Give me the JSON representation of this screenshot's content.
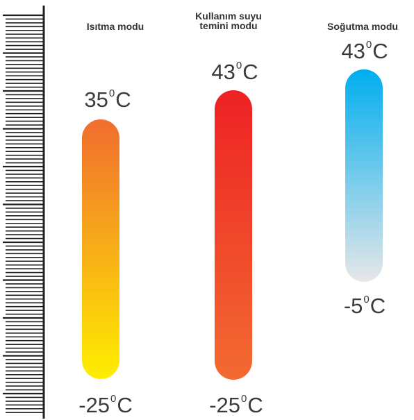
{
  "modes": [
    {
      "title_lines": [
        "Isıtma modu"
      ],
      "max": {
        "value": "35",
        "unit": "C"
      },
      "min": {
        "value": "-25",
        "unit": "C"
      },
      "gradient": {
        "top": "#f06d2f",
        "bottom": "#ffee00"
      }
    },
    {
      "title_lines": [
        "Kullanım suyu",
        "temini modu"
      ],
      "max": {
        "value": "43",
        "unit": "C"
      },
      "min": {
        "value": "-25",
        "unit": "C"
      },
      "gradient": {
        "top": "#ee2124",
        "bottom": "#f26b31"
      }
    },
    {
      "title_lines": [
        "Soğutma modu"
      ],
      "max": {
        "value": "43",
        "unit": "C"
      },
      "min": {
        "value": "-5",
        "unit": "C"
      },
      "gradient": {
        "top": "#00aeef",
        "bottom": "#e6e7e8"
      }
    }
  ],
  "degree_symbol": "0",
  "scale": {
    "color": "#231f20"
  }
}
